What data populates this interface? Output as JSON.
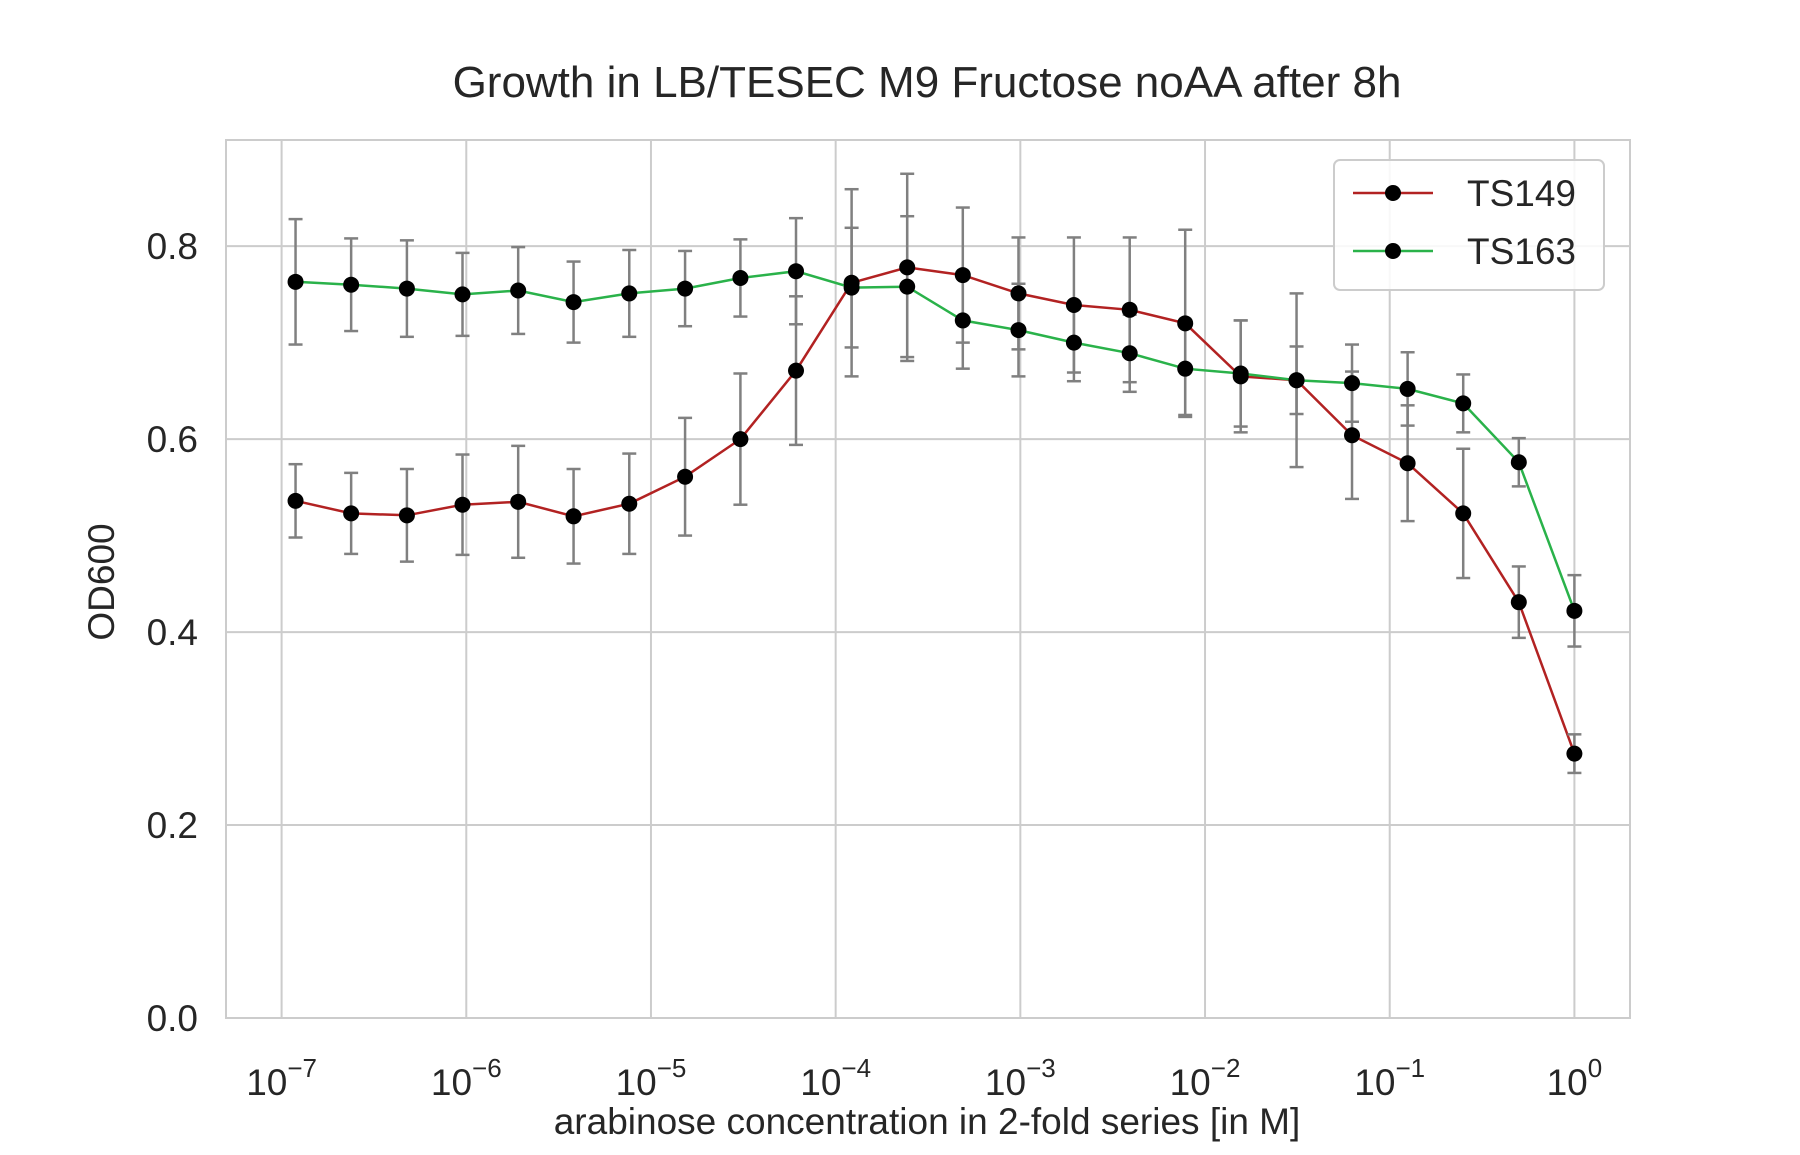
{
  "chart_data": {
    "type": "line",
    "title": "Growth in LB/TESEC M9 Fructose noAA after 8h",
    "xlabel": "arabinose concentration in 2-fold series [in M]",
    "ylabel": "OD600",
    "x_scale": "log",
    "xlim": [
      5e-08,
      2.0
    ],
    "ylim": [
      0.0,
      0.91
    ],
    "grid": true,
    "legend_position": "top-right",
    "x_tick_labels": [
      {
        "base": "10",
        "exp": "−7",
        "value": 1e-07
      },
      {
        "base": "10",
        "exp": "−6",
        "value": 1e-06
      },
      {
        "base": "10",
        "exp": "−5",
        "value": 1e-05
      },
      {
        "base": "10",
        "exp": "−4",
        "value": 0.0001
      },
      {
        "base": "10",
        "exp": "−3",
        "value": 0.001
      },
      {
        "base": "10",
        "exp": "−2",
        "value": 0.01
      },
      {
        "base": "10",
        "exp": "−1",
        "value": 0.1
      },
      {
        "base": "10",
        "exp": "0",
        "value": 1
      }
    ],
    "y_ticks": [
      {
        "label": "0.0",
        "value": 0.0
      },
      {
        "label": "0.2",
        "value": 0.2
      },
      {
        "label": "0.4",
        "value": 0.4
      },
      {
        "label": "0.6",
        "value": 0.6
      },
      {
        "label": "0.8",
        "value": 0.8
      }
    ],
    "x": [
      1.19e-07,
      2.38e-07,
      4.77e-07,
      9.54e-07,
      1.91e-06,
      3.81e-06,
      7.63e-06,
      1.53e-05,
      3.05e-05,
      6.1e-05,
      0.000122,
      0.000244,
      0.000488,
      0.000977,
      0.00195,
      0.00391,
      0.00781,
      0.0156,
      0.0313,
      0.0625,
      0.125,
      0.25,
      0.5,
      1.0
    ],
    "errorbar_color": "#808080",
    "marker_color": "#000000",
    "series": [
      {
        "name": "TS149",
        "color": "#b22222",
        "values": [
          0.536,
          0.523,
          0.521,
          0.532,
          0.535,
          0.52,
          0.533,
          0.561,
          0.6,
          0.671,
          0.762,
          0.778,
          0.77,
          0.751,
          0.739,
          0.734,
          0.72,
          0.665,
          0.661,
          0.604,
          0.575,
          0.523,
          0.431,
          0.274
        ],
        "errors": [
          0.038,
          0.042,
          0.048,
          0.052,
          0.058,
          0.049,
          0.052,
          0.061,
          0.068,
          0.077,
          0.097,
          0.097,
          0.07,
          0.058,
          0.07,
          0.075,
          0.097,
          0.058,
          0.09,
          0.066,
          0.06,
          0.067,
          0.037,
          0.02
        ]
      },
      {
        "name": "TS163",
        "color": "#2ab24a",
        "values": [
          0.763,
          0.76,
          0.756,
          0.75,
          0.754,
          0.742,
          0.751,
          0.756,
          0.767,
          0.774,
          0.757,
          0.758,
          0.723,
          0.713,
          0.7,
          0.689,
          0.673,
          0.668,
          0.661,
          0.658,
          0.652,
          0.637,
          0.576,
          0.422
        ],
        "errors": [
          0.065,
          0.048,
          0.05,
          0.043,
          0.045,
          0.042,
          0.045,
          0.039,
          0.04,
          0.055,
          0.062,
          0.073,
          0.05,
          0.048,
          0.04,
          0.04,
          0.048,
          0.055,
          0.035,
          0.04,
          0.038,
          0.03,
          0.025,
          0.037
        ]
      }
    ]
  }
}
